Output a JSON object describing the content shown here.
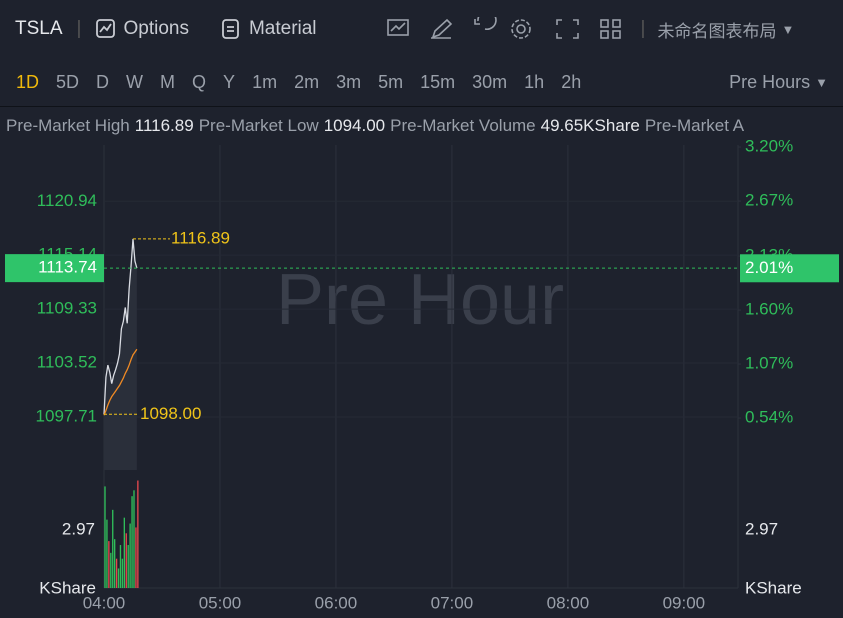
{
  "toolbar": {
    "symbol": "TSLA",
    "options": "Options",
    "material": "Material",
    "layout": "未命名图表布局"
  },
  "intervals": {
    "items": [
      "1D",
      "5D",
      "D",
      "W",
      "M",
      "Q",
      "Y",
      "1m",
      "2m",
      "3m",
      "5m",
      "15m",
      "30m",
      "1h",
      "2h"
    ],
    "active": "1D",
    "session": "Pre Hours"
  },
  "info_bar": {
    "items": [
      {
        "label": "Pre-Market High",
        "value": "1116.89"
      },
      {
        "label": "Pre-Market Low",
        "value": "1094.00"
      },
      {
        "label": "Pre-Market Volume",
        "value": "49.65KShare"
      },
      {
        "label": "Pre-Market A",
        "value": null
      }
    ]
  },
  "chart_data": {
    "type": "line",
    "watermark": "Pre Hour",
    "x": [
      240,
      241,
      242,
      243,
      244,
      245,
      246,
      247,
      248,
      249,
      250,
      251,
      252,
      253,
      254,
      255,
      256,
      257
    ],
    "series": [
      {
        "name": "Price",
        "color": "#d9dce3",
        "values": [
          1098.0,
          1102.0,
          1103.3,
          1102.5,
          1101.3,
          1102.2,
          1102.8,
          1103.5,
          1104.5,
          1107.2,
          1108.0,
          1109.5,
          1107.8,
          1111.5,
          1114.0,
          1116.89,
          1114.5,
          1113.74
        ]
      },
      {
        "name": "Average",
        "color": "#f08a24",
        "values": [
          1097.9,
          1098.4,
          1099.0,
          1099.5,
          1099.9,
          1100.2,
          1100.5,
          1100.8,
          1101.1,
          1101.5,
          1101.9,
          1102.4,
          1102.8,
          1103.3,
          1103.9,
          1104.4,
          1104.7,
          1105.0
        ]
      }
    ],
    "xlim": [
      240,
      568
    ],
    "xticks": [
      {
        "value": 240,
        "label": "04:00"
      },
      {
        "value": 300,
        "label": "05:00"
      },
      {
        "value": 360,
        "label": "06:00"
      },
      {
        "value": 420,
        "label": "07:00"
      },
      {
        "value": 480,
        "label": "08:00"
      },
      {
        "value": 540,
        "label": "09:00"
      }
    ],
    "ylim": [
      1092,
      1127
    ],
    "yticks": [
      1097.71,
      1103.52,
      1109.33,
      1115.14,
      1120.94
    ],
    "y2lim": [
      0.03,
      3.22
    ],
    "y2ticks": [
      {
        "value": 0.54,
        "label": "0.54%"
      },
      {
        "value": 1.07,
        "label": "1.07%"
      },
      {
        "value": 1.6,
        "label": "1.60%"
      },
      {
        "value": 2.13,
        "label": "2.13%"
      },
      {
        "value": 2.67,
        "label": "2.67%"
      },
      {
        "value": 3.2,
        "label": "3.20%"
      }
    ],
    "last_price": 1113.74,
    "last_change": {
      "value": 2.01,
      "label": "2.01%"
    },
    "high_marker": {
      "x": 255,
      "y": 1116.89
    },
    "low_marker": {
      "x": 240,
      "y": 1098,
      "label": "1098.00"
    },
    "volume": {
      "unit": "KShare",
      "ylim": [
        0,
        5.63
      ],
      "yticks": [
        2.97
      ],
      "up_color": "#2fbd5a",
      "down_color": "#e5484d",
      "values": [
        5.2,
        3.5,
        2.4,
        1.8,
        4.0,
        2.5,
        1.5,
        1.0,
        2.2,
        1.5,
        3.6,
        2.8,
        2.2,
        3.3,
        4.7,
        5.0,
        3.1,
        5.5
      ],
      "up": [
        true,
        true,
        false,
        true,
        true,
        true,
        false,
        true,
        true,
        true,
        true,
        false,
        true,
        true,
        true,
        true,
        false,
        false
      ]
    },
    "grid": true
  }
}
